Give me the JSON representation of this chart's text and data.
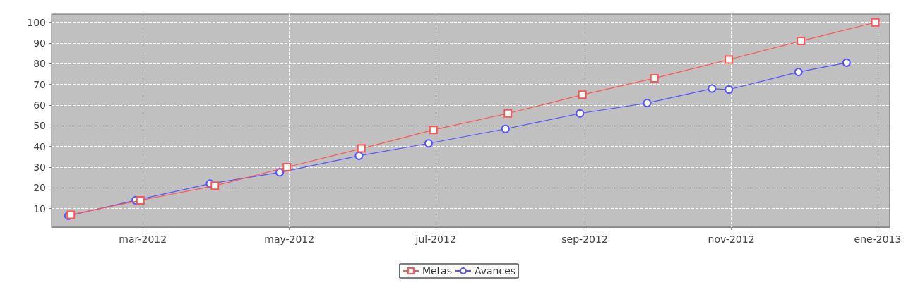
{
  "chart_data": {
    "type": "line",
    "xlim": [
      "2012-01-23",
      "2013-01-06"
    ],
    "xticks": [
      {
        "value": "2012-03-01",
        "label": "mar-2012"
      },
      {
        "value": "2012-05-01",
        "label": "may-2012"
      },
      {
        "value": "2012-07-01",
        "label": "jul-2012"
      },
      {
        "value": "2012-09-01",
        "label": "sep-2012"
      },
      {
        "value": "2012-11-01",
        "label": "nov-2012"
      },
      {
        "value": "2013-01-01",
        "label": "ene-2013"
      }
    ],
    "ylim": [
      1,
      104
    ],
    "yticks": [
      10,
      20,
      30,
      40,
      50,
      60,
      70,
      80,
      90,
      100
    ],
    "grid": true,
    "legend": "bottom",
    "line_style": "solid",
    "series": [
      {
        "name": "Metas",
        "color": "#ff5555",
        "marker": "square",
        "x": [
          "2012-01-31",
          "2012-02-29",
          "2012-03-31",
          "2012-04-30",
          "2012-05-31",
          "2012-06-30",
          "2012-07-31",
          "2012-08-31",
          "2012-09-30",
          "2012-10-31",
          "2012-11-30",
          "2012-12-31"
        ],
        "values": [
          7,
          14,
          21,
          30,
          39,
          48,
          56,
          65,
          73,
          82,
          91,
          100
        ]
      },
      {
        "name": "Avances",
        "color": "#5555ff",
        "marker": "circle",
        "x": [
          "2012-01-30",
          "2012-02-27",
          "2012-03-29",
          "2012-04-27",
          "2012-05-30",
          "2012-06-28",
          "2012-07-30",
          "2012-08-30",
          "2012-09-27",
          "2012-10-24",
          "2012-10-31",
          "2012-11-29",
          "2012-12-19"
        ],
        "values": [
          6.5,
          14,
          22,
          27.5,
          35.5,
          41.5,
          48.5,
          56,
          61,
          68,
          67.5,
          76,
          80.5
        ]
      }
    ]
  }
}
